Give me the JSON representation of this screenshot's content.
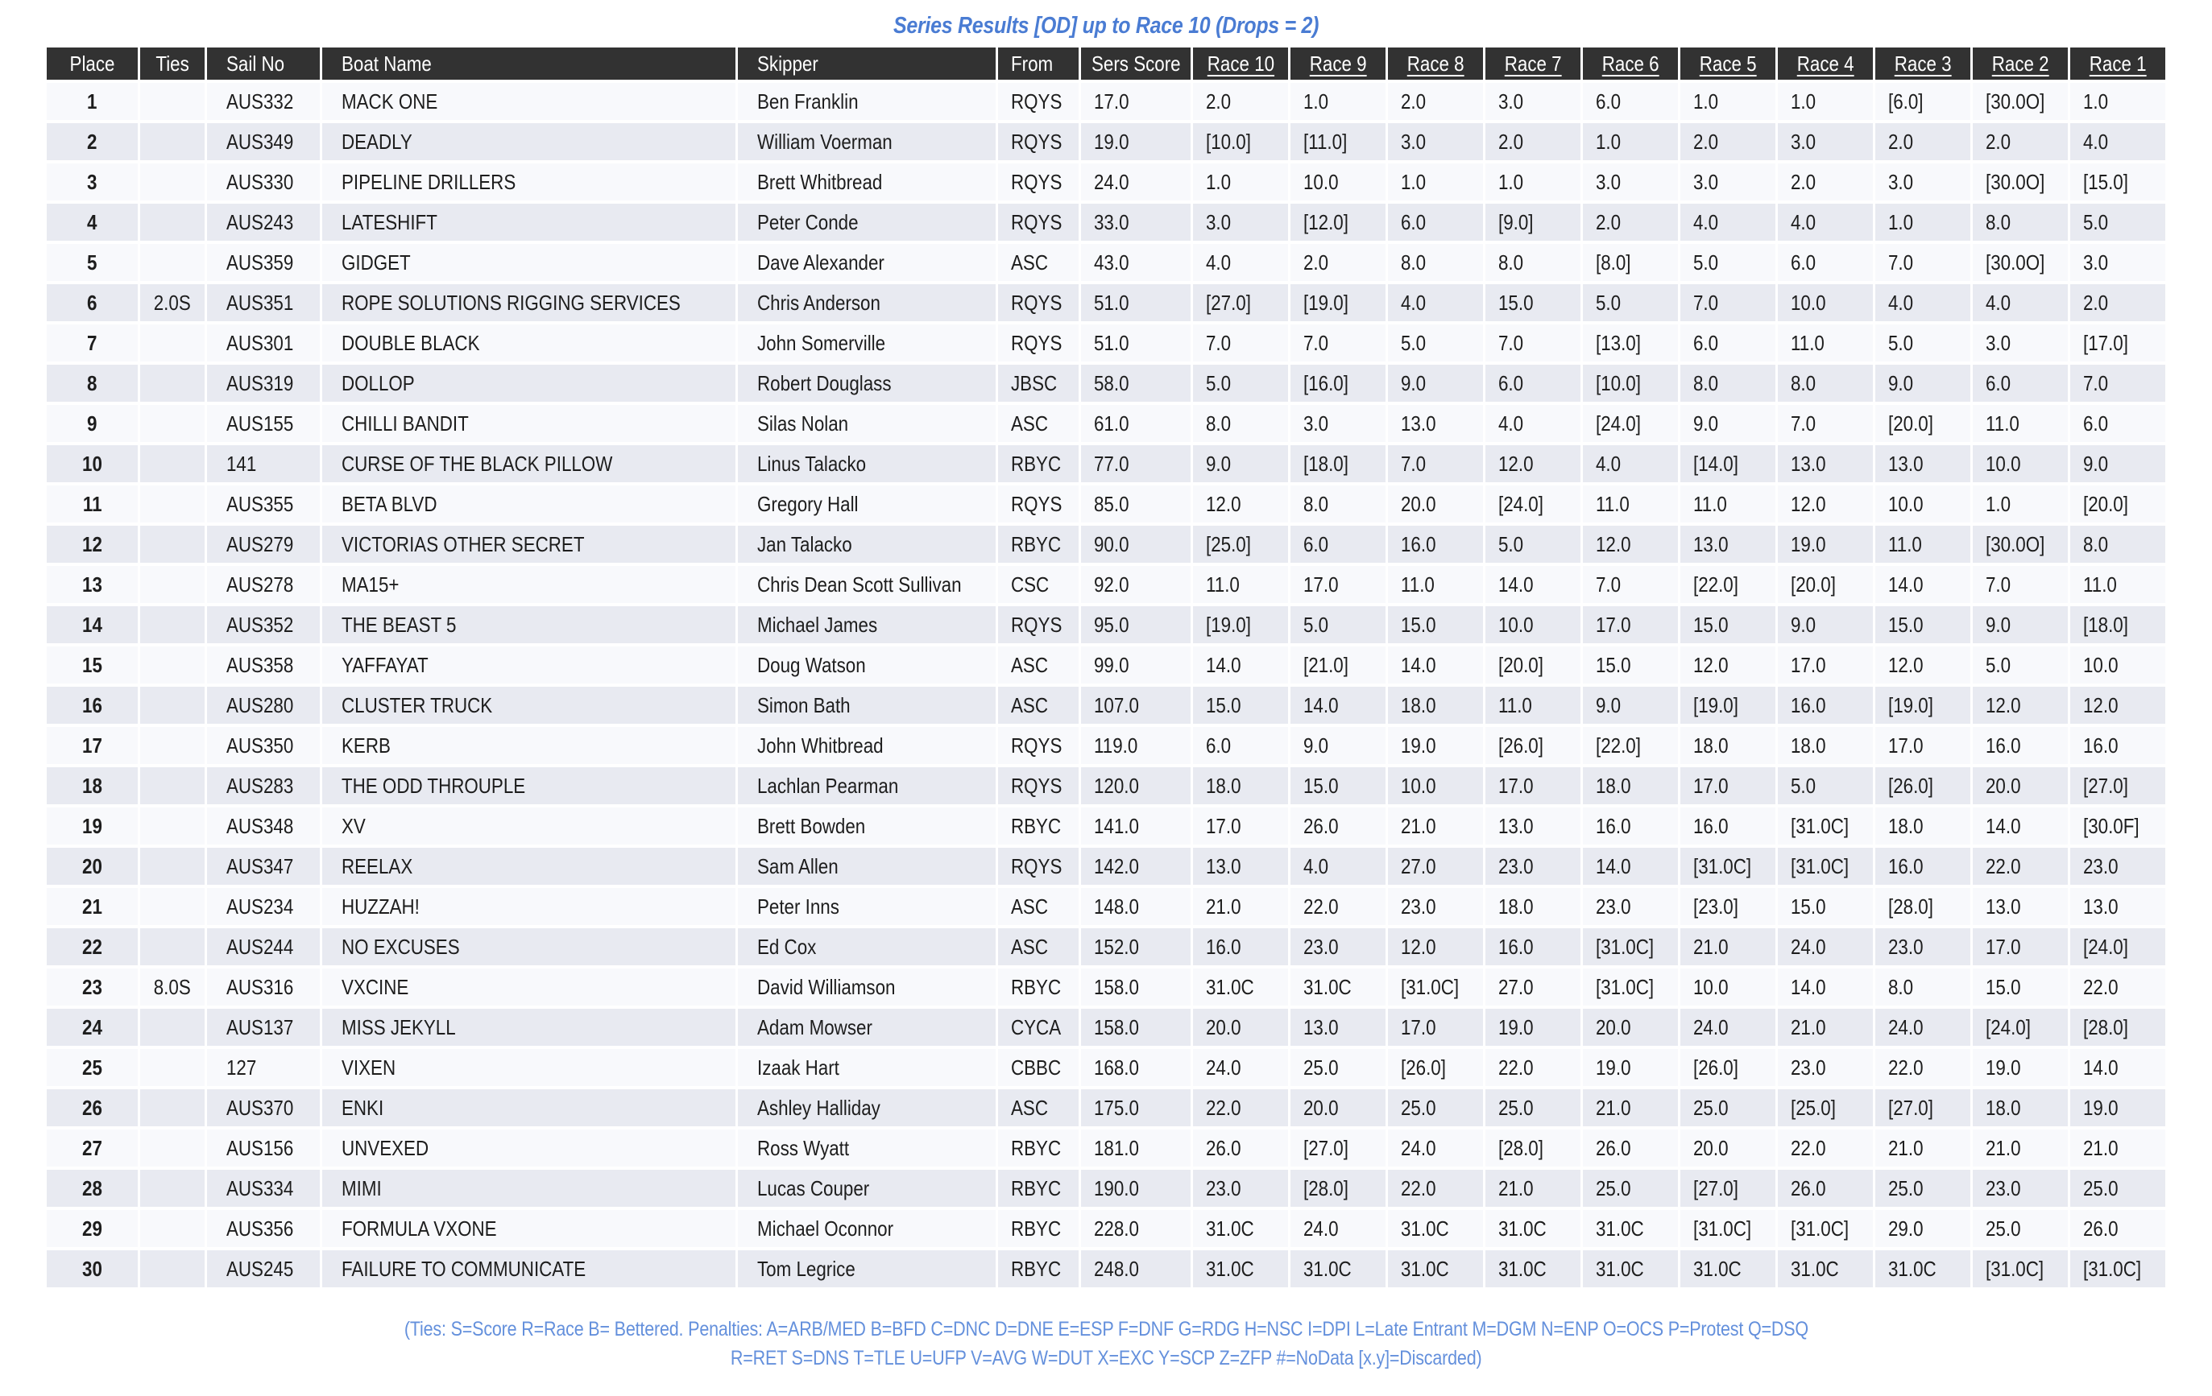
{
  "title": "Series Results [OD] up to Race 10 (Drops = 2)",
  "colors": {
    "title_blue": "#4a7cd3",
    "footer_blue": "#6490dc",
    "header_bg": "#323232",
    "header_text": "#ffffff",
    "row_odd_bg": "#f8f9fc",
    "row_even_bg": "#e8eaf1",
    "cell_text": "#1d1d1d"
  },
  "table": {
    "columns": [
      "Place",
      "Ties",
      "Sail No",
      "Boat Name",
      "Skipper",
      "From",
      "Sers Score"
    ],
    "race_columns": [
      "Race 10",
      "Race 9",
      "Race 8",
      "Race 7",
      "Race 6",
      "Race 5",
      "Race 4",
      "Race 3",
      "Race 2",
      "Race 1"
    ],
    "rows": [
      {
        "place": "1",
        "ties": "",
        "sail_no": "AUS332",
        "boat_name": "MACK ONE",
        "skipper": "Ben Franklin",
        "from": "RQYS",
        "sers_score": "17.0",
        "races": [
          "2.0",
          "1.0",
          "2.0",
          "3.0",
          "6.0",
          "1.0",
          "1.0",
          "[6.0]",
          "[30.0O]",
          "1.0"
        ]
      },
      {
        "place": "2",
        "ties": "",
        "sail_no": "AUS349",
        "boat_name": "DEADLY",
        "skipper": "William Voerman",
        "from": "RQYS",
        "sers_score": "19.0",
        "races": [
          "[10.0]",
          "[11.0]",
          "3.0",
          "2.0",
          "1.0",
          "2.0",
          "3.0",
          "2.0",
          "2.0",
          "4.0"
        ]
      },
      {
        "place": "3",
        "ties": "",
        "sail_no": "AUS330",
        "boat_name": "PIPELINE DRILLERS",
        "skipper": "Brett Whitbread",
        "from": "RQYS",
        "sers_score": "24.0",
        "races": [
          "1.0",
          "10.0",
          "1.0",
          "1.0",
          "3.0",
          "3.0",
          "2.0",
          "3.0",
          "[30.0O]",
          "[15.0]"
        ]
      },
      {
        "place": "4",
        "ties": "",
        "sail_no": "AUS243",
        "boat_name": "LATESHIFT",
        "skipper": "Peter Conde",
        "from": "RQYS",
        "sers_score": "33.0",
        "races": [
          "3.0",
          "[12.0]",
          "6.0",
          "[9.0]",
          "2.0",
          "4.0",
          "4.0",
          "1.0",
          "8.0",
          "5.0"
        ]
      },
      {
        "place": "5",
        "ties": "",
        "sail_no": "AUS359",
        "boat_name": "GIDGET",
        "skipper": "Dave Alexander",
        "from": "ASC",
        "sers_score": "43.0",
        "races": [
          "4.0",
          "2.0",
          "8.0",
          "8.0",
          "[8.0]",
          "5.0",
          "6.0",
          "7.0",
          "[30.0O]",
          "3.0"
        ]
      },
      {
        "place": "6",
        "ties": "2.0S",
        "sail_no": "AUS351",
        "boat_name": "ROPE SOLUTIONS RIGGING SERVICES",
        "skipper": "Chris Anderson",
        "from": "RQYS",
        "sers_score": "51.0",
        "races": [
          "[27.0]",
          "[19.0]",
          "4.0",
          "15.0",
          "5.0",
          "7.0",
          "10.0",
          "4.0",
          "4.0",
          "2.0"
        ]
      },
      {
        "place": "7",
        "ties": "",
        "sail_no": "AUS301",
        "boat_name": "DOUBLE BLACK",
        "skipper": "John Somerville",
        "from": "RQYS",
        "sers_score": "51.0",
        "races": [
          "7.0",
          "7.0",
          "5.0",
          "7.0",
          "[13.0]",
          "6.0",
          "11.0",
          "5.0",
          "3.0",
          "[17.0]"
        ]
      },
      {
        "place": "8",
        "ties": "",
        "sail_no": "AUS319",
        "boat_name": "DOLLOP",
        "skipper": "Robert Douglass",
        "from": "JBSC",
        "sers_score": "58.0",
        "races": [
          "5.0",
          "[16.0]",
          "9.0",
          "6.0",
          "[10.0]",
          "8.0",
          "8.0",
          "9.0",
          "6.0",
          "7.0"
        ]
      },
      {
        "place": "9",
        "ties": "",
        "sail_no": "AUS155",
        "boat_name": "CHILLI BANDIT",
        "skipper": "Silas Nolan",
        "from": "ASC",
        "sers_score": "61.0",
        "races": [
          "8.0",
          "3.0",
          "13.0",
          "4.0",
          "[24.0]",
          "9.0",
          "7.0",
          "[20.0]",
          "11.0",
          "6.0"
        ]
      },
      {
        "place": "10",
        "ties": "",
        "sail_no": "141",
        "boat_name": "CURSE OF THE BLACK PILLOW",
        "skipper": "Linus Talacko",
        "from": "RBYC",
        "sers_score": "77.0",
        "races": [
          "9.0",
          "[18.0]",
          "7.0",
          "12.0",
          "4.0",
          "[14.0]",
          "13.0",
          "13.0",
          "10.0",
          "9.0"
        ]
      },
      {
        "place": "11",
        "ties": "",
        "sail_no": "AUS355",
        "boat_name": "BETA BLVD",
        "skipper": "Gregory Hall",
        "from": "RQYS",
        "sers_score": "85.0",
        "races": [
          "12.0",
          "8.0",
          "20.0",
          "[24.0]",
          "11.0",
          "11.0",
          "12.0",
          "10.0",
          "1.0",
          "[20.0]"
        ]
      },
      {
        "place": "12",
        "ties": "",
        "sail_no": "AUS279",
        "boat_name": "VICTORIAS OTHER SECRET",
        "skipper": "Jan Talacko",
        "from": "RBYC",
        "sers_score": "90.0",
        "races": [
          "[25.0]",
          "6.0",
          "16.0",
          "5.0",
          "12.0",
          "13.0",
          "19.0",
          "11.0",
          "[30.0O]",
          "8.0"
        ]
      },
      {
        "place": "13",
        "ties": "",
        "sail_no": "AUS278",
        "boat_name": "MA15+",
        "skipper": "Chris Dean Scott Sullivan",
        "from": "CSC",
        "sers_score": "92.0",
        "races": [
          "11.0",
          "17.0",
          "11.0",
          "14.0",
          "7.0",
          "[22.0]",
          "[20.0]",
          "14.0",
          "7.0",
          "11.0"
        ]
      },
      {
        "place": "14",
        "ties": "",
        "sail_no": "AUS352",
        "boat_name": "THE BEAST 5",
        "skipper": "Michael James",
        "from": "RQYS",
        "sers_score": "95.0",
        "races": [
          "[19.0]",
          "5.0",
          "15.0",
          "10.0",
          "17.0",
          "15.0",
          "9.0",
          "15.0",
          "9.0",
          "[18.0]"
        ]
      },
      {
        "place": "15",
        "ties": "",
        "sail_no": "AUS358",
        "boat_name": "YAFFAYAT",
        "skipper": "Doug Watson",
        "from": "ASC",
        "sers_score": "99.0",
        "races": [
          "14.0",
          "[21.0]",
          "14.0",
          "[20.0]",
          "15.0",
          "12.0",
          "17.0",
          "12.0",
          "5.0",
          "10.0"
        ]
      },
      {
        "place": "16",
        "ties": "",
        "sail_no": "AUS280",
        "boat_name": "CLUSTER TRUCK",
        "skipper": "Simon Bath",
        "from": "ASC",
        "sers_score": "107.0",
        "races": [
          "15.0",
          "14.0",
          "18.0",
          "11.0",
          "9.0",
          "[19.0]",
          "16.0",
          "[19.0]",
          "12.0",
          "12.0"
        ]
      },
      {
        "place": "17",
        "ties": "",
        "sail_no": "AUS350",
        "boat_name": "KERB",
        "skipper": "John Whitbread",
        "from": "RQYS",
        "sers_score": "119.0",
        "races": [
          "6.0",
          "9.0",
          "19.0",
          "[26.0]",
          "[22.0]",
          "18.0",
          "18.0",
          "17.0",
          "16.0",
          "16.0"
        ]
      },
      {
        "place": "18",
        "ties": "",
        "sail_no": "AUS283",
        "boat_name": "THE ODD THROUPLE",
        "skipper": "Lachlan Pearman",
        "from": "RQYS",
        "sers_score": "120.0",
        "races": [
          "18.0",
          "15.0",
          "10.0",
          "17.0",
          "18.0",
          "17.0",
          "5.0",
          "[26.0]",
          "20.0",
          "[27.0]"
        ]
      },
      {
        "place": "19",
        "ties": "",
        "sail_no": "AUS348",
        "boat_name": "XV",
        "skipper": "Brett Bowden",
        "from": "RBYC",
        "sers_score": "141.0",
        "races": [
          "17.0",
          "26.0",
          "21.0",
          "13.0",
          "16.0",
          "16.0",
          "[31.0C]",
          "18.0",
          "14.0",
          "[30.0F]"
        ]
      },
      {
        "place": "20",
        "ties": "",
        "sail_no": "AUS347",
        "boat_name": "REELAX",
        "skipper": "Sam Allen",
        "from": "RQYS",
        "sers_score": "142.0",
        "races": [
          "13.0",
          "4.0",
          "27.0",
          "23.0",
          "14.0",
          "[31.0C]",
          "[31.0C]",
          "16.0",
          "22.0",
          "23.0"
        ]
      },
      {
        "place": "21",
        "ties": "",
        "sail_no": "AUS234",
        "boat_name": "HUZZAH!",
        "skipper": "Peter Inns",
        "from": "ASC",
        "sers_score": "148.0",
        "races": [
          "21.0",
          "22.0",
          "23.0",
          "18.0",
          "23.0",
          "[23.0]",
          "15.0",
          "[28.0]",
          "13.0",
          "13.0"
        ]
      },
      {
        "place": "22",
        "ties": "",
        "sail_no": "AUS244",
        "boat_name": "NO EXCUSES",
        "skipper": "Ed Cox",
        "from": "ASC",
        "sers_score": "152.0",
        "races": [
          "16.0",
          "23.0",
          "12.0",
          "16.0",
          "[31.0C]",
          "21.0",
          "24.0",
          "23.0",
          "17.0",
          "[24.0]"
        ]
      },
      {
        "place": "23",
        "ties": "8.0S",
        "sail_no": "AUS316",
        "boat_name": "VXCINE",
        "skipper": "David Williamson",
        "from": "RBYC",
        "sers_score": "158.0",
        "races": [
          "31.0C",
          "31.0C",
          "[31.0C]",
          "27.0",
          "[31.0C]",
          "10.0",
          "14.0",
          "8.0",
          "15.0",
          "22.0"
        ]
      },
      {
        "place": "24",
        "ties": "",
        "sail_no": "AUS137",
        "boat_name": "MISS JEKYLL",
        "skipper": "Adam Mowser",
        "from": "CYCA",
        "sers_score": "158.0",
        "races": [
          "20.0",
          "13.0",
          "17.0",
          "19.0",
          "20.0",
          "24.0",
          "21.0",
          "24.0",
          "[24.0]",
          "[28.0]"
        ]
      },
      {
        "place": "25",
        "ties": "",
        "sail_no": "127",
        "boat_name": "VIXEN",
        "skipper": "Izaak Hart",
        "from": "CBBC",
        "sers_score": "168.0",
        "races": [
          "24.0",
          "25.0",
          "[26.0]",
          "22.0",
          "19.0",
          "[26.0]",
          "23.0",
          "22.0",
          "19.0",
          "14.0"
        ]
      },
      {
        "place": "26",
        "ties": "",
        "sail_no": "AUS370",
        "boat_name": "ENKI",
        "skipper": "Ashley Halliday",
        "from": "ASC",
        "sers_score": "175.0",
        "races": [
          "22.0",
          "20.0",
          "25.0",
          "25.0",
          "21.0",
          "25.0",
          "[25.0]",
          "[27.0]",
          "18.0",
          "19.0"
        ]
      },
      {
        "place": "27",
        "ties": "",
        "sail_no": "AUS156",
        "boat_name": "UNVEXED",
        "skipper": "Ross Wyatt",
        "from": "RBYC",
        "sers_score": "181.0",
        "races": [
          "26.0",
          "[27.0]",
          "24.0",
          "[28.0]",
          "26.0",
          "20.0",
          "22.0",
          "21.0",
          "21.0",
          "21.0"
        ]
      },
      {
        "place": "28",
        "ties": "",
        "sail_no": "AUS334",
        "boat_name": "MIMI",
        "skipper": "Lucas Couper",
        "from": "RBYC",
        "sers_score": "190.0",
        "races": [
          "23.0",
          "[28.0]",
          "22.0",
          "21.0",
          "25.0",
          "[27.0]",
          "26.0",
          "25.0",
          "23.0",
          "25.0"
        ]
      },
      {
        "place": "29",
        "ties": "",
        "sail_no": "AUS356",
        "boat_name": "FORMULA VXONE",
        "skipper": "Michael Oconnor",
        "from": "RBYC",
        "sers_score": "228.0",
        "races": [
          "31.0C",
          "24.0",
          "31.0C",
          "31.0C",
          "31.0C",
          "[31.0C]",
          "[31.0C]",
          "29.0",
          "25.0",
          "26.0"
        ]
      },
      {
        "place": "30",
        "ties": "",
        "sail_no": "AUS245",
        "boat_name": "FAILURE TO COMMUNICATE",
        "skipper": "Tom Legrice",
        "from": "RBYC",
        "sers_score": "248.0",
        "races": [
          "31.0C",
          "31.0C",
          "31.0C",
          "31.0C",
          "31.0C",
          "31.0C",
          "31.0C",
          "31.0C",
          "[31.0C]",
          "[31.0C]"
        ]
      }
    ]
  },
  "footer": {
    "line1": "(Ties: S=Score R=Race B= Bettered. Penalties: A=ARB/MED B=BFD C=DNC D=DNE E=ESP F=DNF G=RDG H=NSC I=DPI L=Late Entrant M=DGM N=ENP O=OCS P=Protest Q=DSQ",
    "line2": "R=RET S=DNS T=TLE U=UFP V=AVG W=DUT X=EXC Y=SCP Z=ZFP #=NoData [x.y]=Discarded)"
  }
}
